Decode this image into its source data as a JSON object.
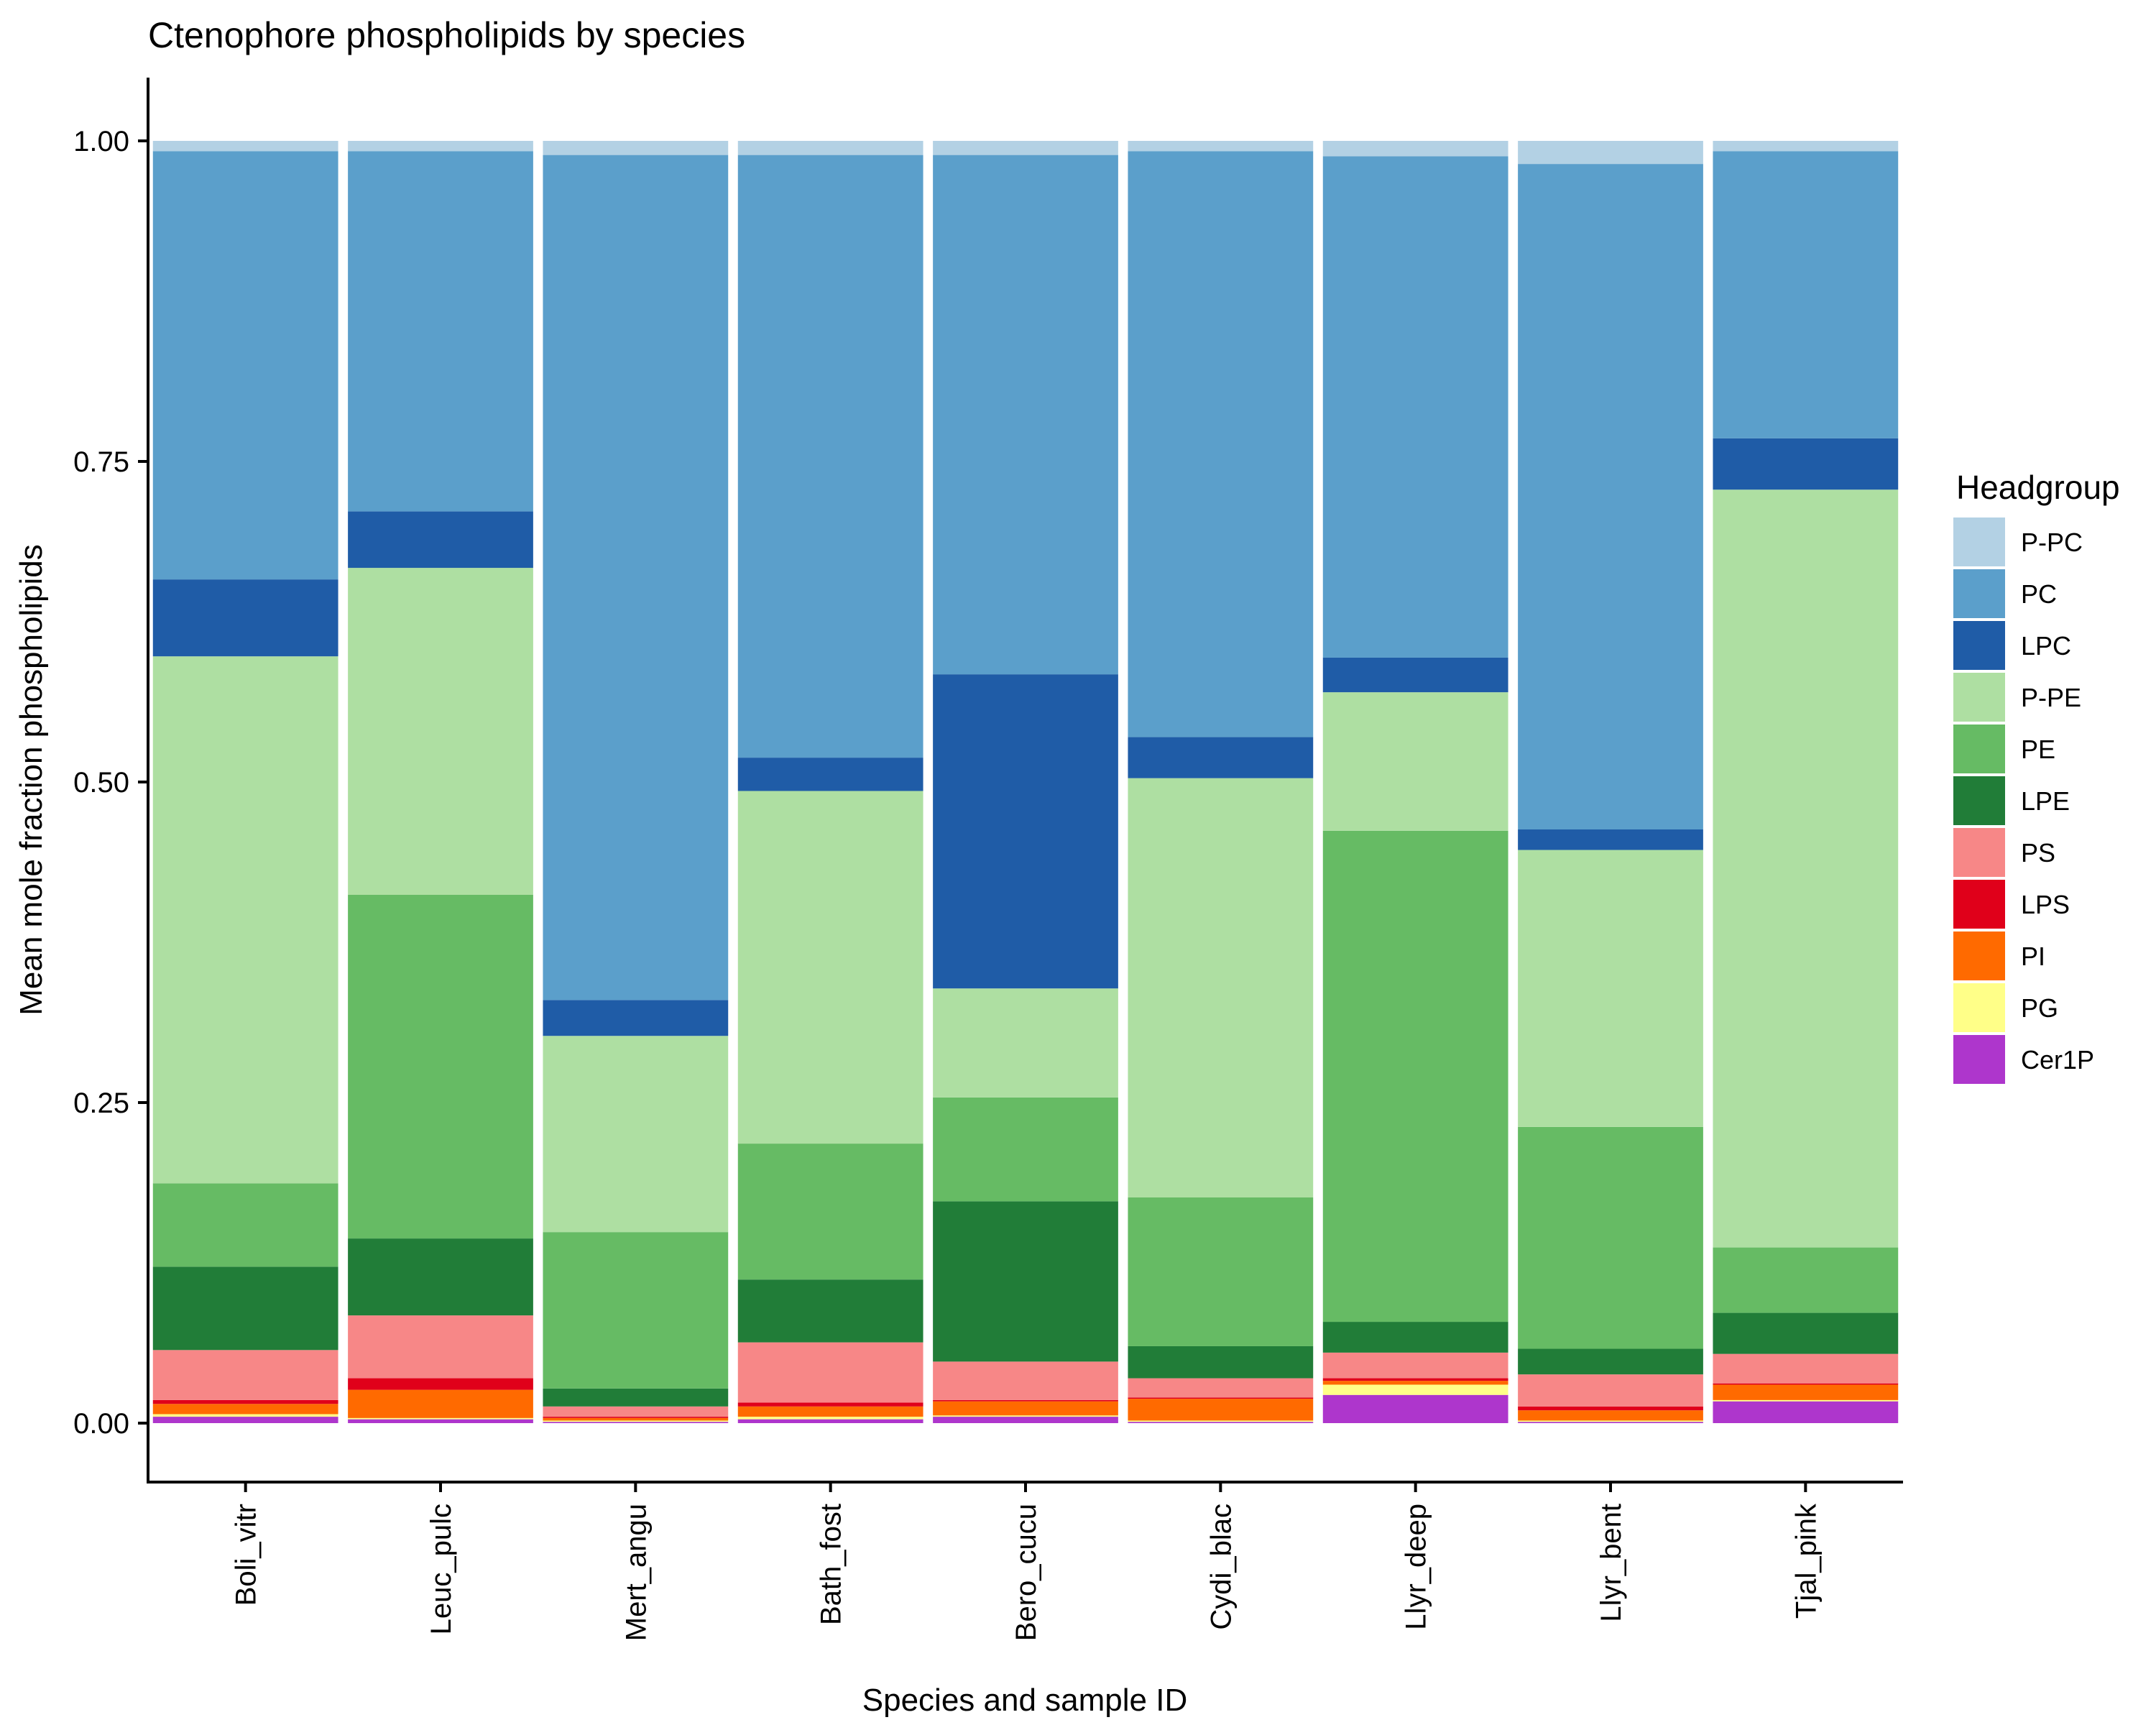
{
  "chart_data": {
    "type": "bar",
    "stacked": true,
    "title": "Ctenophore phospholipids by species",
    "xlabel": "Species and sample ID",
    "ylabel": "Mean mole fraction phospholipids",
    "ylim": [
      -0.05,
      1.05
    ],
    "yticks": [
      0.0,
      0.25,
      0.5,
      0.75,
      1.0
    ],
    "ytick_labels": [
      "0.00",
      "0.25",
      "0.50",
      "0.75",
      "1.00"
    ],
    "grid": false,
    "legend": {
      "title": "Headgroup",
      "position": "right"
    },
    "categories": [
      "Boli_vitr",
      "Leuc_pulc",
      "Mert_angu",
      "Bath_fost",
      "Bero_cucu",
      "Cydi_blac",
      "Llyr_deep",
      "Llyr_bent",
      "Tjal_pink"
    ],
    "series": [
      {
        "name": "Cer1P",
        "color": "#AE36CC",
        "values": [
          0.005,
          0.003,
          0.001,
          0.003,
          0.005,
          0.001,
          0.022,
          0.001,
          0.017
        ]
      },
      {
        "name": "PG",
        "color": "#FFFF88",
        "values": [
          0.002,
          0.001,
          0.001,
          0.002,
          0.001,
          0.001,
          0.008,
          0.001,
          0.001
        ]
      },
      {
        "name": "PI",
        "color": "#FF6A00",
        "values": [
          0.008,
          0.022,
          0.002,
          0.008,
          0.011,
          0.017,
          0.003,
          0.008,
          0.012
        ]
      },
      {
        "name": "LPS",
        "color": "#E0001A",
        "values": [
          0.003,
          0.009,
          0.001,
          0.003,
          0.001,
          0.001,
          0.002,
          0.003,
          0.001
        ]
      },
      {
        "name": "PS",
        "color": "#F78787",
        "values": [
          0.039,
          0.049,
          0.008,
          0.047,
          0.03,
          0.015,
          0.02,
          0.025,
          0.023
        ]
      },
      {
        "name": "LPE",
        "color": "#217D38",
        "values": [
          0.065,
          0.06,
          0.014,
          0.049,
          0.125,
          0.025,
          0.024,
          0.02,
          0.032
        ]
      },
      {
        "name": "PE",
        "color": "#66BB64",
        "values": [
          0.065,
          0.268,
          0.122,
          0.106,
          0.081,
          0.116,
          0.383,
          0.173,
          0.051
        ]
      },
      {
        "name": "P-PE",
        "color": "#AEDFA2",
        "values": [
          0.411,
          0.255,
          0.153,
          0.275,
          0.085,
          0.327,
          0.108,
          0.216,
          0.591
        ]
      },
      {
        "name": "LPC",
        "color": "#1F5CA7",
        "values": [
          0.06,
          0.044,
          0.028,
          0.026,
          0.245,
          0.032,
          0.027,
          0.016,
          0.04
        ]
      },
      {
        "name": "PC",
        "color": "#5B9FCB",
        "values": [
          0.334,
          0.281,
          0.659,
          0.47,
          0.405,
          0.457,
          0.391,
          0.519,
          0.224
        ]
      },
      {
        "name": "P-PC",
        "color": "#B3D1E4",
        "values": [
          0.008,
          0.008,
          0.011,
          0.011,
          0.011,
          0.008,
          0.012,
          0.018,
          0.008
        ]
      }
    ]
  }
}
